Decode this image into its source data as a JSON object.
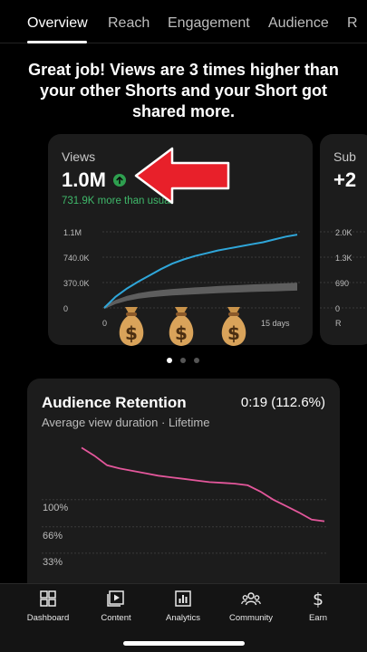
{
  "tabs": [
    "Overview",
    "Reach",
    "Engagement",
    "Audience",
    "R"
  ],
  "headline": "Great job! Views are 3 times higher than your other Shorts and your Short got shared more.",
  "views_card": {
    "title": "Views",
    "value": "1.0M",
    "diff": "731.9K more than usual",
    "y_ticks": [
      "1.1M",
      "740.0K",
      "370.0K",
      "0"
    ],
    "x_ticks": [
      "0",
      "15 days"
    ]
  },
  "subs_card": {
    "title": "Sub",
    "value": "+2",
    "y_ticks": [
      "2.0K",
      "1.3K",
      "690",
      "0"
    ],
    "x_tick": "R"
  },
  "retention_card": {
    "title": "Audience Retention",
    "value": "0:19 (112.6%)",
    "subtitle": "Average view duration · Lifetime",
    "y_ticks": [
      "100%",
      "66%",
      "33%"
    ]
  },
  "bottom_nav": [
    "Dashboard",
    "Content",
    "Analytics",
    "Community",
    "Earn"
  ],
  "colors": {
    "views_line": "#2fa6d9",
    "typical_band": "#6a6a6a",
    "retention_line": "#e3579b",
    "positive": "#3fb86a",
    "annotation_arrow": "#e8202a"
  },
  "chart_data": [
    {
      "type": "line",
      "title": "Views",
      "x": [
        0,
        1,
        2,
        3,
        4,
        5,
        6,
        7,
        8,
        9,
        10,
        11,
        12,
        13,
        14,
        15,
        16,
        17
      ],
      "series": [
        {
          "values": [
            0,
            160000,
            280000,
            380000,
            470000,
            560000,
            640000,
            700000,
            750000,
            790000,
            830000,
            860000,
            890000,
            920000,
            950000,
            990000,
            1030000,
            1060000
          ]
        }
      ],
      "typical_band": [
        0,
        90000,
        150000,
        190000,
        215000,
        235000,
        250000,
        262000,
        272000,
        282000,
        292000,
        300000,
        308000,
        316000,
        322000,
        328000,
        334000,
        340000
      ],
      "ylim": [
        0,
        1100000
      ],
      "y_ticks": [
        "1.1M",
        "740.0K",
        "370.0K",
        "0"
      ],
      "x_ticks": [
        "0",
        "15 days"
      ],
      "grid": true
    },
    {
      "type": "line",
      "title": "Audience Retention",
      "x": [
        0,
        1,
        2,
        3,
        4,
        5,
        6,
        7,
        8,
        9,
        10,
        11,
        12,
        13,
        14,
        15,
        16,
        17,
        18,
        19
      ],
      "series": [
        {
          "values": [
            165,
            155,
            143,
            139,
            136,
            133,
            130,
            128,
            126,
            124,
            122,
            121,
            120,
            118,
            110,
            100,
            92,
            84,
            75,
            73
          ]
        }
      ],
      "ylim": [
        0,
        170
      ],
      "y_ticks": [
        "100%",
        "66%",
        "33%"
      ],
      "grid": true
    }
  ]
}
